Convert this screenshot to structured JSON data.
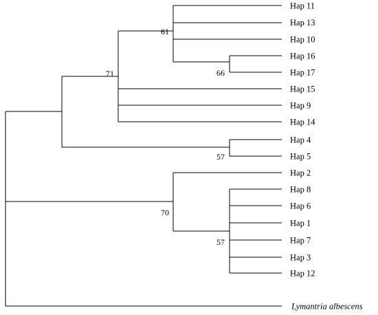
{
  "tree": {
    "taxa": [
      {
        "id": "hap11",
        "label": "Hap 11"
      },
      {
        "id": "hap13",
        "label": "Hap 13"
      },
      {
        "id": "hap10",
        "label": "Hap 10"
      },
      {
        "id": "hap16",
        "label": "Hap 16"
      },
      {
        "id": "hap17",
        "label": "Hap 17"
      },
      {
        "id": "hap15",
        "label": "Hap 15"
      },
      {
        "id": "hap9",
        "label": "Hap 9"
      },
      {
        "id": "hap14",
        "label": "Hap 14"
      },
      {
        "id": "hap4",
        "label": "Hap 4"
      },
      {
        "id": "hap5",
        "label": "Hap 5"
      },
      {
        "id": "hap2",
        "label": "Hap 2"
      },
      {
        "id": "hap8",
        "label": "Hap 8"
      },
      {
        "id": "hap6",
        "label": "Hap 6"
      },
      {
        "id": "hap1",
        "label": "Hap 1"
      },
      {
        "id": "hap7",
        "label": "Hap 7"
      },
      {
        "id": "hap3",
        "label": "Hap 3"
      },
      {
        "id": "hap12",
        "label": "Hap 12"
      },
      {
        "id": "lymantria-albescens",
        "label": "Lymantria albescens",
        "italic": true
      }
    ],
    "support_values": [
      {
        "id": "node-61",
        "value": "61"
      },
      {
        "id": "node-66",
        "value": "66"
      },
      {
        "id": "node-71",
        "value": "71"
      },
      {
        "id": "node-57-top",
        "value": "57"
      },
      {
        "id": "node-70",
        "value": "70"
      },
      {
        "id": "node-57-bottom",
        "value": "57"
      }
    ]
  }
}
